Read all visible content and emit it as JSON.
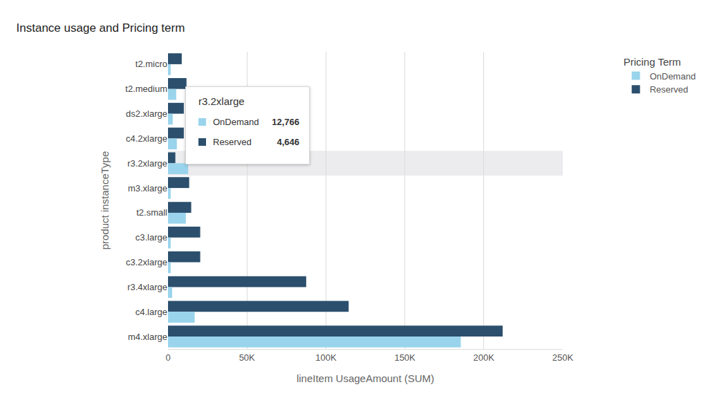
{
  "chart_data": {
    "type": "bar",
    "orientation": "horizontal",
    "title": "Instance usage and Pricing term",
    "x_label": "lineItem UsageAmount (SUM)",
    "y_label": "product instanceType",
    "legend_title": "Pricing Term",
    "legend": "right",
    "grid": true,
    "categories": [
      "t2.micro",
      "t2.medium",
      "ds2.xlarge",
      "c4.2xlarge",
      "r3.2xlarge",
      "m3.xlarge",
      "t2.small",
      "c3.large",
      "c3.2xlarge",
      "r3.4xlarge",
      "c4.large",
      "m4.xlarge"
    ],
    "series": [
      {
        "name": "Reserved",
        "color": "#2b4f6d",
        "values": [
          8700,
          11700,
          10000,
          10000,
          4646,
          13400,
          14700,
          20400,
          20400,
          87500,
          114400,
          211900
        ]
      },
      {
        "name": "OnDemand",
        "color": "#9ad4ec",
        "values": [
          1700,
          5200,
          3000,
          5600,
          12766,
          1700,
          11300,
          1700,
          1700,
          2600,
          16900,
          185400
        ]
      }
    ],
    "xlim": [
      0,
      250000
    ],
    "xticks": [
      0,
      {
        "value": 50000,
        "label": "50K"
      },
      {
        "value": 100000,
        "label": "100K"
      },
      {
        "value": 150000,
        "label": "150K"
      },
      {
        "value": 200000,
        "label": "200K"
      },
      {
        "value": 250000,
        "label": "250K"
      }
    ],
    "tooltip": {
      "title": "r3.2xlarge",
      "items": [
        {
          "name": "OnDemand",
          "label": "12,766"
        },
        {
          "name": "Reserved",
          "label": "4,646"
        }
      ]
    }
  }
}
